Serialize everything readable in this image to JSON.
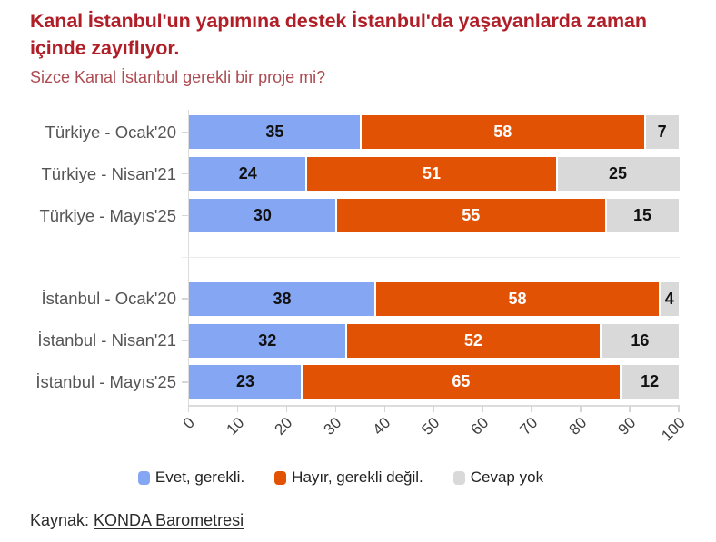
{
  "title": "Kanal İstanbul'un yapımına destek İstanbul'da yaşayanlarda zaman içinde zayıflıyor.",
  "subtitle": "Sizce Kanal İstanbul gerekli bir proje mi?",
  "source": {
    "prefix": "Kaynak: ",
    "link": "KONDA Barometresi"
  },
  "colors": {
    "title": "#b01f28",
    "subtitle": "#ad4b52",
    "blue": "#85a6f2",
    "orange": "#e25204",
    "gray": "#d9d9d9",
    "dark_label": "#111111",
    "white_label": "#ffffff"
  },
  "legend": [
    {
      "label": "Evet, gerekli.",
      "color": "#85a6f2"
    },
    {
      "label": "Hayır, gerekli değil.",
      "color": "#e25204"
    },
    {
      "label": "Cevap yok",
      "color": "#d9d9d9"
    }
  ],
  "chart_data": {
    "type": "bar",
    "orientation": "horizontal",
    "stacked": true,
    "title": "Kanal İstanbul'un yapımına destek İstanbul'da yaşayanlarda zaman içinde zayıflıyor.",
    "subtitle": "Sizce Kanal İstanbul gerekli bir proje mi?",
    "categories": [
      "Türkiye - Ocak'20",
      "Türkiye - Nisan'21",
      "Türkiye - Mayıs'25",
      "",
      "İstanbul - Ocak'20",
      "İstanbul - Nisan'21",
      "İstanbul - Mayıs'25"
    ],
    "series": [
      {
        "name": "Evet, gerekli.",
        "color": "#85a6f2",
        "label_color": "#111111",
        "values": [
          35,
          24,
          30,
          null,
          38,
          32,
          23
        ]
      },
      {
        "name": "Hayır, gerekli değil.",
        "color": "#e25204",
        "label_color": "#ffffff",
        "values": [
          58,
          51,
          55,
          null,
          58,
          52,
          65
        ]
      },
      {
        "name": "Cevap yok",
        "color": "#d9d9d9",
        "label_color": "#111111",
        "values": [
          7,
          25,
          15,
          null,
          4,
          16,
          12
        ]
      }
    ],
    "xlim": [
      0,
      100
    ],
    "xticks": [
      0,
      10,
      20,
      30,
      40,
      50,
      60,
      70,
      80,
      90,
      100
    ],
    "grid": false,
    "legend_position": "bottom",
    "value_labels": "center"
  }
}
